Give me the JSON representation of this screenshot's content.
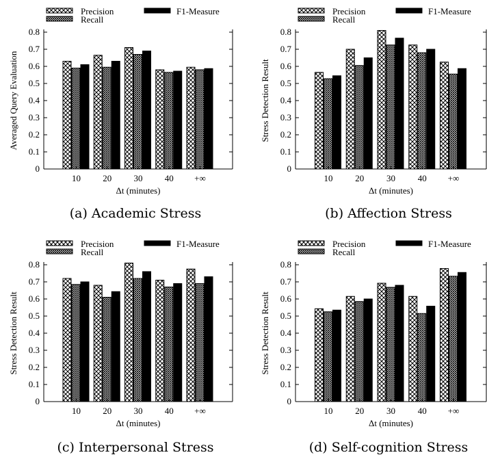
{
  "legend": {
    "precision": "Precision",
    "recall": "Recall",
    "f1": "F1-Measure"
  },
  "chart_data": [
    {
      "type": "bar",
      "caption": "(a) Academic Stress",
      "xlabel": "Δt (minutes)",
      "ylabel": "Averaged Query Evaluation",
      "ylim": [
        0,
        0.8
      ],
      "yticks": [
        "0",
        "0.1",
        "0.2",
        "0.3",
        "0.4",
        "0.5",
        "0.6",
        "0.7",
        "0.8"
      ],
      "categories": [
        "10",
        "20",
        "30",
        "40",
        "+∞"
      ],
      "series": [
        {
          "name": "Precision",
          "values": [
            0.63,
            0.665,
            0.71,
            0.58,
            0.595
          ]
        },
        {
          "name": "Recall",
          "values": [
            0.59,
            0.595,
            0.67,
            0.565,
            0.58
          ]
        },
        {
          "name": "F1-Measure",
          "values": [
            0.61,
            0.63,
            0.69,
            0.572,
            0.587
          ]
        }
      ],
      "legend_position": "top"
    },
    {
      "type": "bar",
      "caption": "(b) Affection Stress",
      "xlabel": "Δt (minutes)",
      "ylabel": "Stress Detection Result",
      "ylim": [
        0,
        0.8
      ],
      "yticks": [
        "0",
        "0.1",
        "0.2",
        "0.3",
        "0.4",
        "0.5",
        "0.6",
        "0.7",
        "0.8"
      ],
      "categories": [
        "10",
        "20",
        "30",
        "40",
        "+∞"
      ],
      "series": [
        {
          "name": "Precision",
          "values": [
            0.565,
            0.7,
            0.81,
            0.725,
            0.625
          ]
        },
        {
          "name": "Recall",
          "values": [
            0.528,
            0.605,
            0.725,
            0.68,
            0.555
          ]
        },
        {
          "name": "F1-Measure",
          "values": [
            0.545,
            0.65,
            0.765,
            0.7,
            0.587
          ]
        }
      ],
      "legend_position": "top"
    },
    {
      "type": "bar",
      "caption": "(c) Interpersonal Stress",
      "xlabel": "Δt (minutes)",
      "ylabel": "Stress Detection Result",
      "ylim": [
        0,
        0.8
      ],
      "yticks": [
        "0",
        "0.1",
        "0.2",
        "0.3",
        "0.4",
        "0.5",
        "0.6",
        "0.7",
        "0.8"
      ],
      "categories": [
        "10",
        "20",
        "30",
        "40",
        "+∞"
      ],
      "series": [
        {
          "name": "Precision",
          "values": [
            0.72,
            0.68,
            0.81,
            0.71,
            0.775
          ]
        },
        {
          "name": "Recall",
          "values": [
            0.685,
            0.61,
            0.72,
            0.67,
            0.69
          ]
        },
        {
          "name": "F1-Measure",
          "values": [
            0.7,
            0.643,
            0.76,
            0.69,
            0.73
          ]
        }
      ],
      "legend_position": "top"
    },
    {
      "type": "bar",
      "caption": "(d) Self-cognition Stress",
      "xlabel": "Δt (minutes)",
      "ylabel": "Stress Detection Result",
      "ylim": [
        0,
        0.8
      ],
      "yticks": [
        "0",
        "0.1",
        "0.2",
        "0.3",
        "0.4",
        "0.5",
        "0.6",
        "0.7",
        "0.8"
      ],
      "categories": [
        "10",
        "20",
        "30",
        "40",
        "+∞"
      ],
      "series": [
        {
          "name": "Precision",
          "values": [
            0.543,
            0.615,
            0.692,
            0.615,
            0.778
          ]
        },
        {
          "name": "Recall",
          "values": [
            0.525,
            0.585,
            0.668,
            0.515,
            0.733
          ]
        },
        {
          "name": "F1-Measure",
          "values": [
            0.535,
            0.6,
            0.68,
            0.558,
            0.755
          ]
        }
      ],
      "legend_position": "top"
    }
  ]
}
